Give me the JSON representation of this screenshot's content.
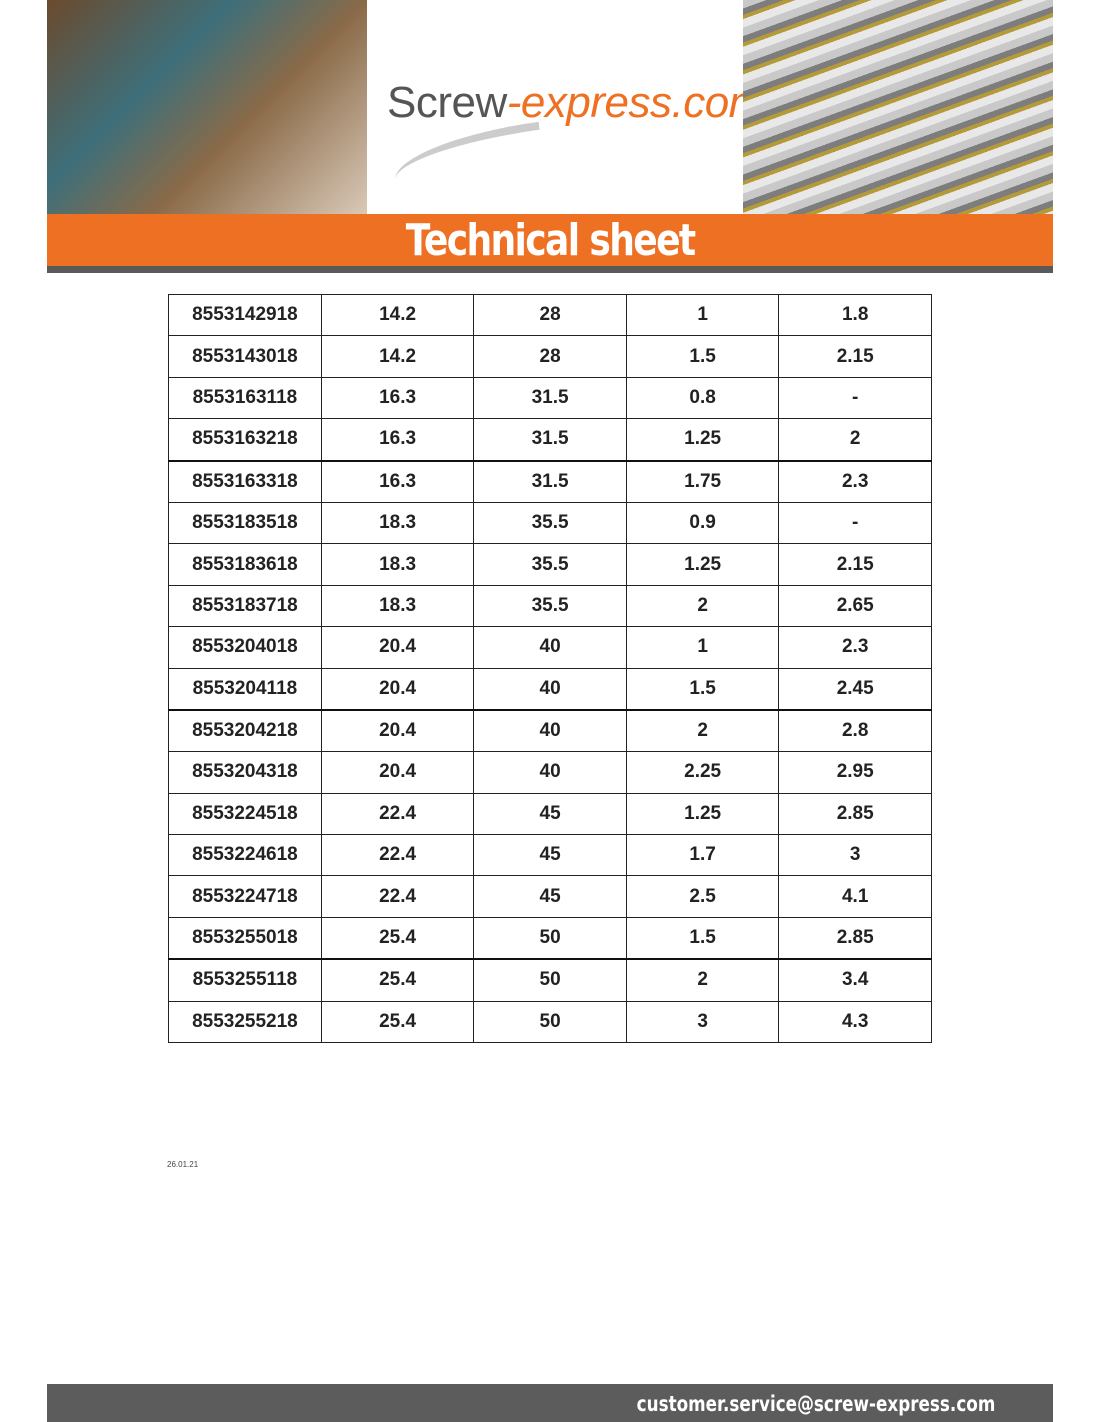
{
  "header": {
    "logo_part1": "Screw",
    "logo_part2": "-express.com",
    "title": "Technical sheet"
  },
  "table": {
    "rows": [
      [
        "8553142918",
        "14.2",
        "28",
        "1",
        "1.8"
      ],
      [
        "8553143018",
        "14.2",
        "28",
        "1.5",
        "2.15"
      ],
      [
        "8553163118",
        "16.3",
        "31.5",
        "0.8",
        "-"
      ],
      [
        "8553163218",
        "16.3",
        "31.5",
        "1.25",
        "2"
      ],
      [
        "8553163318",
        "16.3",
        "31.5",
        "1.75",
        "2.3"
      ],
      [
        "8553183518",
        "18.3",
        "35.5",
        "0.9",
        "-"
      ],
      [
        "8553183618",
        "18.3",
        "35.5",
        "1.25",
        "2.15"
      ],
      [
        "8553183718",
        "18.3",
        "35.5",
        "2",
        "2.65"
      ],
      [
        "8553204018",
        "20.4",
        "40",
        "1",
        "2.3"
      ],
      [
        "8553204118",
        "20.4",
        "40",
        "1.5",
        "2.45"
      ],
      [
        "8553204218",
        "20.4",
        "40",
        "2",
        "2.8"
      ],
      [
        "8553204318",
        "20.4",
        "40",
        "2.25",
        "2.95"
      ],
      [
        "8553224518",
        "22.4",
        "45",
        "1.25",
        "2.85"
      ],
      [
        "8553224618",
        "22.4",
        "45",
        "1.7",
        "3"
      ],
      [
        "8553224718",
        "22.4",
        "45",
        "2.5",
        "4.1"
      ],
      [
        "8553255018",
        "25.4",
        "50",
        "1.5",
        "2.85"
      ],
      [
        "8553255118",
        "25.4",
        "50",
        "2",
        "3.4"
      ],
      [
        "8553255218",
        "25.4",
        "50",
        "3",
        "4.3"
      ]
    ]
  },
  "date": "26.01.21",
  "footer": {
    "email": "customer.service@screw-express.com"
  },
  "colors": {
    "brand_orange": "#ee7023",
    "bar_gray": "#5c5c5d"
  }
}
